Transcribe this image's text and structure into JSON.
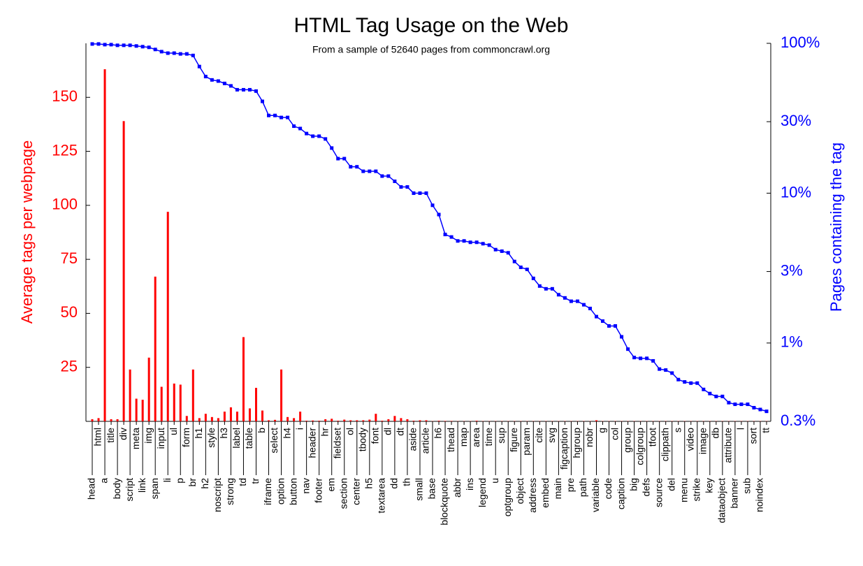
{
  "chart_data": {
    "type": "bar-line",
    "title": "HTML Tag Usage on the Web",
    "subtitle": "From a sample of 52640 pages from commoncrawl.org",
    "y_label": "Average tags per webpage",
    "y2_label": "Pages containing the tag",
    "categories": [
      "head",
      "html",
      "a",
      "title",
      "body",
      "div",
      "script",
      "meta",
      "link",
      "img",
      "span",
      "input",
      "li",
      "ul",
      "p",
      "form",
      "br",
      "h1",
      "h2",
      "style",
      "noscript",
      "h3",
      "strong",
      "label",
      "td",
      "table",
      "tr",
      "b",
      "iframe",
      "select",
      "option",
      "h4",
      "button",
      "i",
      "nav",
      "header",
      "footer",
      "hr",
      "em",
      "fieldset",
      "section",
      "ol",
      "center",
      "tbody",
      "h5",
      "font",
      "textarea",
      "dl",
      "dd",
      "dt",
      "th",
      "aside",
      "small",
      "article",
      "base",
      "h6",
      "blockquote",
      "thead",
      "abbr",
      "map",
      "ins",
      "area",
      "legend",
      "time",
      "u",
      "sup",
      "optgroup",
      "figure",
      "object",
      "param",
      "address",
      "cite",
      "embed",
      "svg",
      "main",
      "figcaption",
      "pre",
      "hgroup",
      "path",
      "nobr",
      "variable",
      "g",
      "code",
      "col",
      "caption",
      "group",
      "big",
      "colgroup",
      "defs",
      "tfoot",
      "source",
      "clippath",
      "del",
      "s",
      "menu",
      "video",
      "strike",
      "image",
      "key",
      "db",
      "dataobject",
      "attribute",
      "banner",
      "l",
      "sub",
      "sort",
      "noindex",
      "tt"
    ],
    "ylim": [
      0,
      175
    ],
    "yticks": [
      25,
      50,
      75,
      100,
      125,
      150
    ],
    "y2lim": [
      0.3,
      100
    ],
    "y2_log": true,
    "y2ticks": [
      {
        "value": 0.3,
        "label": "0.3%"
      },
      {
        "value": 1,
        "label": "1%"
      },
      {
        "value": 3,
        "label": "3%"
      },
      {
        "value": 10,
        "label": "10%"
      },
      {
        "value": 30,
        "label": "30%"
      },
      {
        "value": 100,
        "label": "100%"
      }
    ],
    "series": [
      {
        "type": "bar",
        "color": "#ff0000",
        "values": [
          1,
          1.5,
          163,
          1,
          1,
          139,
          24,
          10.5,
          10,
          29.5,
          67,
          16,
          97,
          17.5,
          17,
          2.5,
          24,
          1.5,
          3.5,
          2,
          1.5,
          4.5,
          6.5,
          4.5,
          39,
          6,
          15.5,
          5,
          0.5,
          0.7,
          24,
          2,
          1.5,
          4.5,
          0.3,
          0.4,
          0.3,
          1,
          1.2,
          0.3,
          0.8,
          0.5,
          0.5,
          0.5,
          0.8,
          3.5,
          0.3,
          1,
          2.5,
          1.5,
          1,
          0.3,
          0.5,
          0.5,
          0.1,
          0.3,
          0.2,
          0.2,
          0.1,
          0.1,
          0.1,
          0.3,
          0.1,
          0.1,
          0.1,
          0.1,
          0.1,
          0.1,
          0.1,
          0.1,
          0.1,
          0.1,
          0.1,
          0.1,
          0.1,
          0.1,
          0.1,
          0.1,
          0.1,
          0.1,
          0.5,
          0.1,
          0.1,
          0.1,
          0.1,
          0.1,
          0.1,
          0.1,
          0.1,
          0.1,
          0.1,
          0.1,
          0.1,
          0.1,
          0.1,
          0.1,
          0.1,
          0.1,
          0.1,
          0.1,
          0.1,
          0.1,
          0.1,
          0.1,
          0.1,
          0.1,
          0.1,
          0.1
        ]
      },
      {
        "type": "line",
        "axis": "y2",
        "color": "#0000ff",
        "values": [
          99,
          99,
          98,
          98,
          97,
          97,
          97,
          96,
          95,
          94,
          91,
          88,
          86,
          86,
          85,
          85,
          83,
          70,
          60,
          57,
          56,
          54,
          52,
          49,
          49,
          49,
          48,
          41,
          33,
          33,
          32,
          32,
          28,
          27,
          25,
          24,
          24,
          23,
          20,
          17,
          17,
          15,
          15,
          14,
          14,
          14,
          13,
          13,
          12,
          11,
          11,
          10,
          10,
          10,
          8.3,
          7.2,
          5.3,
          5.1,
          4.8,
          4.8,
          4.7,
          4.7,
          4.6,
          4.5,
          4.2,
          4.1,
          4.0,
          3.5,
          3.2,
          3.1,
          2.7,
          2.4,
          2.3,
          2.3,
          2.1,
          2.0,
          1.9,
          1.9,
          1.8,
          1.7,
          1.5,
          1.4,
          1.3,
          1.3,
          1.1,
          0.91,
          0.8,
          0.79,
          0.79,
          0.76,
          0.67,
          0.66,
          0.63,
          0.57,
          0.55,
          0.54,
          0.54,
          0.49,
          0.46,
          0.44,
          0.44,
          0.4,
          0.39,
          0.39,
          0.39,
          0.37,
          0.36,
          0.35
        ]
      }
    ]
  }
}
